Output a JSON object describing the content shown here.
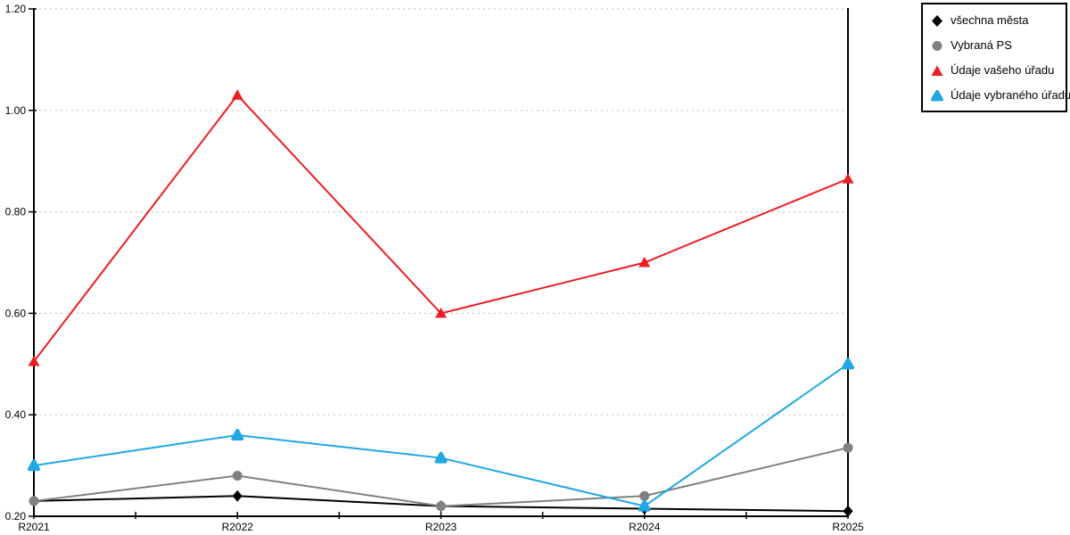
{
  "chart_data": {
    "type": "line",
    "categories": [
      "R2021",
      "R2022",
      "R2023",
      "R2024",
      "R2025"
    ],
    "series": [
      {
        "name": "všechna města",
        "color": "#000000",
        "marker": "diamond",
        "values": [
          0.23,
          0.24,
          0.22,
          0.215,
          0.21
        ]
      },
      {
        "name": "Vybraná PS",
        "color": "#808080",
        "marker": "circle",
        "values": [
          0.23,
          0.28,
          0.22,
          0.24,
          0.335
        ]
      },
      {
        "name": "Údaje vašeho úřadu",
        "color": "#ee1c23",
        "marker": "triangle",
        "values": [
          0.505,
          1.03,
          0.6,
          0.7,
          0.865
        ]
      },
      {
        "name": "Údaje vybraného úřadu",
        "color": "#1fa8e2",
        "marker": "triangle-rounded",
        "values": [
          0.3,
          0.36,
          0.315,
          0.22,
          0.5
        ]
      }
    ],
    "ylim": [
      0.2,
      1.2
    ],
    "y_ticks": [
      0.2,
      0.4,
      0.6,
      0.8,
      1.0,
      1.2
    ],
    "y_tick_labels": [
      "0.20",
      "0.40",
      "0.60",
      "0.80",
      "1.00",
      "1.20"
    ],
    "grid": "horizontal-dashed",
    "grid_color": "#c6c6c6",
    "axis_color": "#000000",
    "legend_position": "top-right"
  }
}
